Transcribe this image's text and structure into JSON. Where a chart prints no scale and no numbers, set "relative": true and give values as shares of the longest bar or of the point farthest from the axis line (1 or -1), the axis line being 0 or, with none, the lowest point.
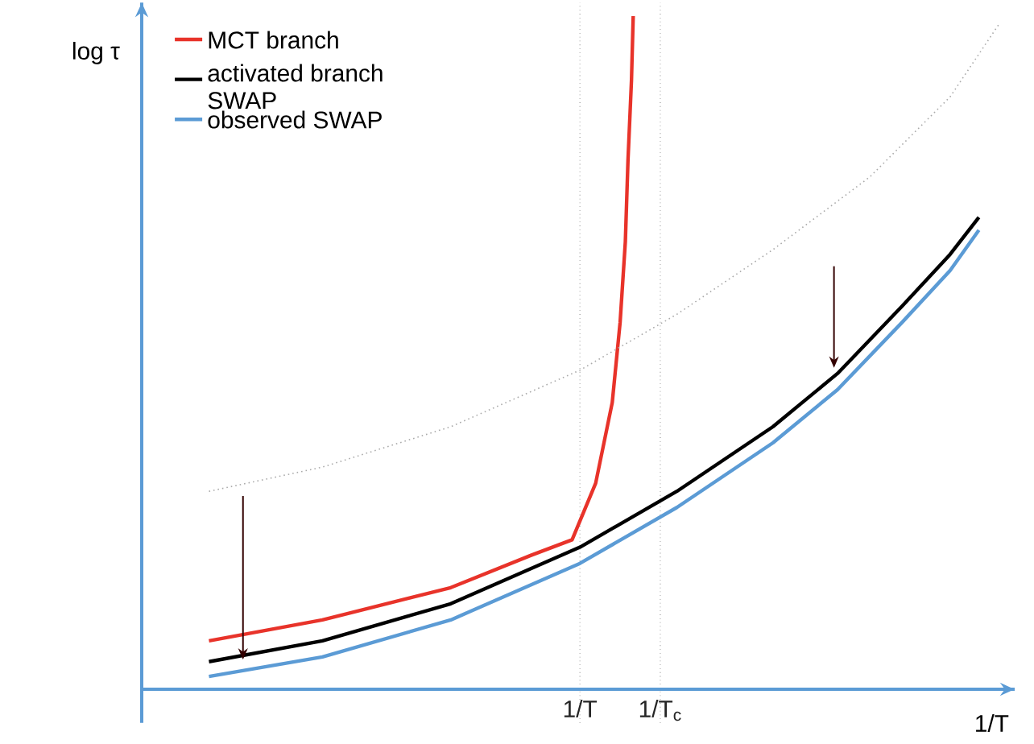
{
  "chart_data": {
    "type": "line",
    "relative": true,
    "xlabel": "1/T",
    "ylabel": "log τ",
    "xlim": [
      0,
      1
    ],
    "xticks": [
      {
        "value": 0.502,
        "label": "1/T"
      },
      {
        "value": 0.594,
        "label": "1/T$_{c}$"
      }
    ],
    "grid": "x",
    "legend": "top left",
    "marker": "none",
    "x": [
      0.077,
      0.207,
      0.354,
      0.446,
      0.493,
      0.52,
      0.539,
      0.548,
      0.554,
      0.557,
      0.561,
      0.563
    ],
    "series": [
      {
        "name": "MCT branch",
        "color": "#e8332a",
        "values": [
          0.072,
          0.103,
          0.151,
          0.199,
          0.222,
          0.306,
          0.426,
          0.545,
          0.665,
          0.785,
          0.904,
          1.0
        ]
      },
      {
        "name": "activated branch SWAP",
        "color": "#000000",
        "x": [
          0.077,
          0.207,
          0.354,
          0.502,
          0.613,
          0.723,
          0.797,
          0.871,
          0.926,
          0.959
        ],
        "values": [
          0.041,
          0.072,
          0.127,
          0.211,
          0.294,
          0.39,
          0.469,
          0.569,
          0.646,
          0.701
        ]
      },
      {
        "name": "observed SWAP",
        "color": "#5b9bd5",
        "x": [
          0.077,
          0.207,
          0.354,
          0.502,
          0.613,
          0.723,
          0.797,
          0.871,
          0.926,
          0.959
        ],
        "values": [
          0.019,
          0.048,
          0.103,
          0.187,
          0.27,
          0.366,
          0.445,
          0.545,
          0.622,
          0.682
        ]
      },
      {
        "color": "#aaaaaa",
        "line_style": "dotted",
        "x": [
          0.077,
          0.207,
          0.354,
          0.502,
          0.613,
          0.723,
          0.834,
          0.926,
          0.982
        ],
        "values": [
          0.294,
          0.33,
          0.39,
          0.474,
          0.557,
          0.653,
          0.761,
          0.88,
          0.988
        ]
      }
    ]
  }
}
